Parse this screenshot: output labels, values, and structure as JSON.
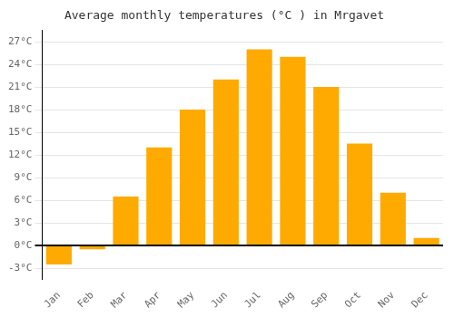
{
  "chart_data": {
    "type": "bar",
    "title": "Average monthly temperatures (°C ) in Mrgavet",
    "categories": [
      "Jan",
      "Feb",
      "Mar",
      "Apr",
      "May",
      "Jun",
      "Jul",
      "Aug",
      "Sep",
      "Oct",
      "Nov",
      "Dec"
    ],
    "values": [
      -2.5,
      -0.5,
      6.5,
      13.0,
      18.0,
      22.0,
      26.0,
      25.0,
      21.0,
      13.5,
      7.0,
      1.0
    ],
    "color": "#FFAA00",
    "ylim": [
      -4.5,
      28.5
    ],
    "yticks": [
      {
        "value": -3,
        "label": "-3°C"
      },
      {
        "value": 0,
        "label": "0°C"
      },
      {
        "value": 3,
        "label": "3°C"
      },
      {
        "value": 6,
        "label": "6°C"
      },
      {
        "value": 9,
        "label": "9°C"
      },
      {
        "value": 12,
        "label": "12°C"
      },
      {
        "value": 15,
        "label": "15°C"
      },
      {
        "value": 18,
        "label": "18°C"
      },
      {
        "value": 21,
        "label": "21°C"
      },
      {
        "value": 24,
        "label": "24°C"
      },
      {
        "value": 27,
        "label": "27°C"
      }
    ],
    "grid": true
  }
}
